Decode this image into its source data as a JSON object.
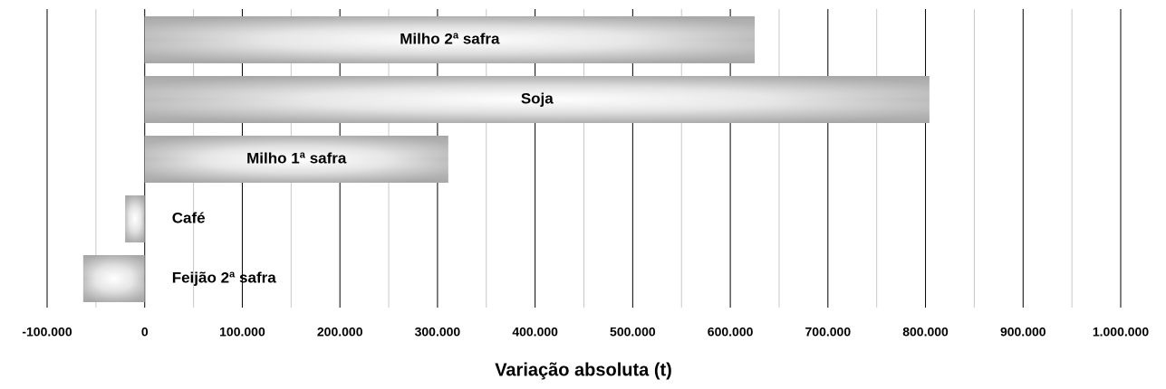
{
  "chart_data": {
    "type": "bar",
    "orientation": "horizontal",
    "x_label": "Variação absoluta (t)",
    "categories": [
      "Milho 2ª safra",
      "Soja",
      "Milho 1ª safra",
      "Café",
      "Feijão 2ª safra"
    ],
    "values": [
      625000,
      804000,
      311000,
      -20000,
      -63000
    ],
    "color": "#a6a6a6",
    "xlim": [
      -100000,
      1000000
    ],
    "xticks": [
      {
        "value": -100000,
        "label": "-100.000"
      },
      0,
      {
        "value": 100000,
        "label": "100.000"
      },
      {
        "value": 200000,
        "label": "200.000"
      },
      {
        "value": 300000,
        "label": "300.000"
      },
      {
        "value": 400000,
        "label": "400.000"
      },
      {
        "value": 500000,
        "label": "500.000"
      },
      {
        "value": 600000,
        "label": "600.000"
      },
      {
        "value": 700000,
        "label": "700.000"
      },
      {
        "value": 800000,
        "label": "800.000"
      },
      {
        "value": 900000,
        "label": "900.000"
      },
      {
        "value": 1000000,
        "label": "1.000.000"
      }
    ],
    "minor_xticks": [
      -50000,
      50000,
      150000,
      250000,
      350000,
      450000,
      550000,
      650000,
      750000,
      850000,
      950000
    ],
    "grid": true
  }
}
